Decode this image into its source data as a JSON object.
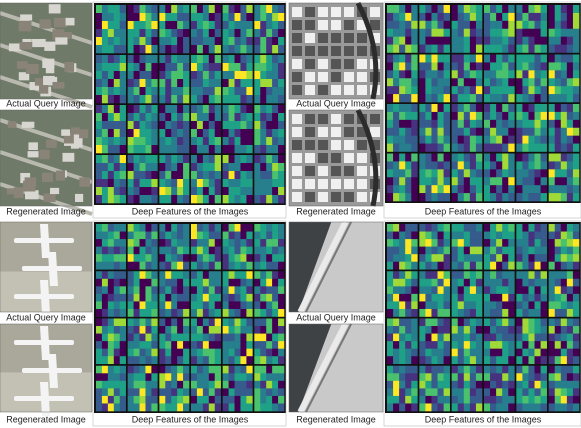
{
  "panels": [
    {
      "query_label": "Actual Query Image",
      "regenerated_label": "Regenerated Image",
      "features_label": "Deep Features of the Images"
    },
    {
      "query_label": "Actual Query Image",
      "regenerated_label": "Regenerated Image",
      "features_label": "Deep Features of the Images"
    },
    {
      "query_label": "Actual Query Image",
      "regenerated_label": "Regenerated Image",
      "features_label": "Deep Features of the Images"
    },
    {
      "query_label": "Actual Query Image",
      "regenerated_label": "Regenerated Image",
      "features_label": "Deep Features of the Images"
    }
  ]
}
